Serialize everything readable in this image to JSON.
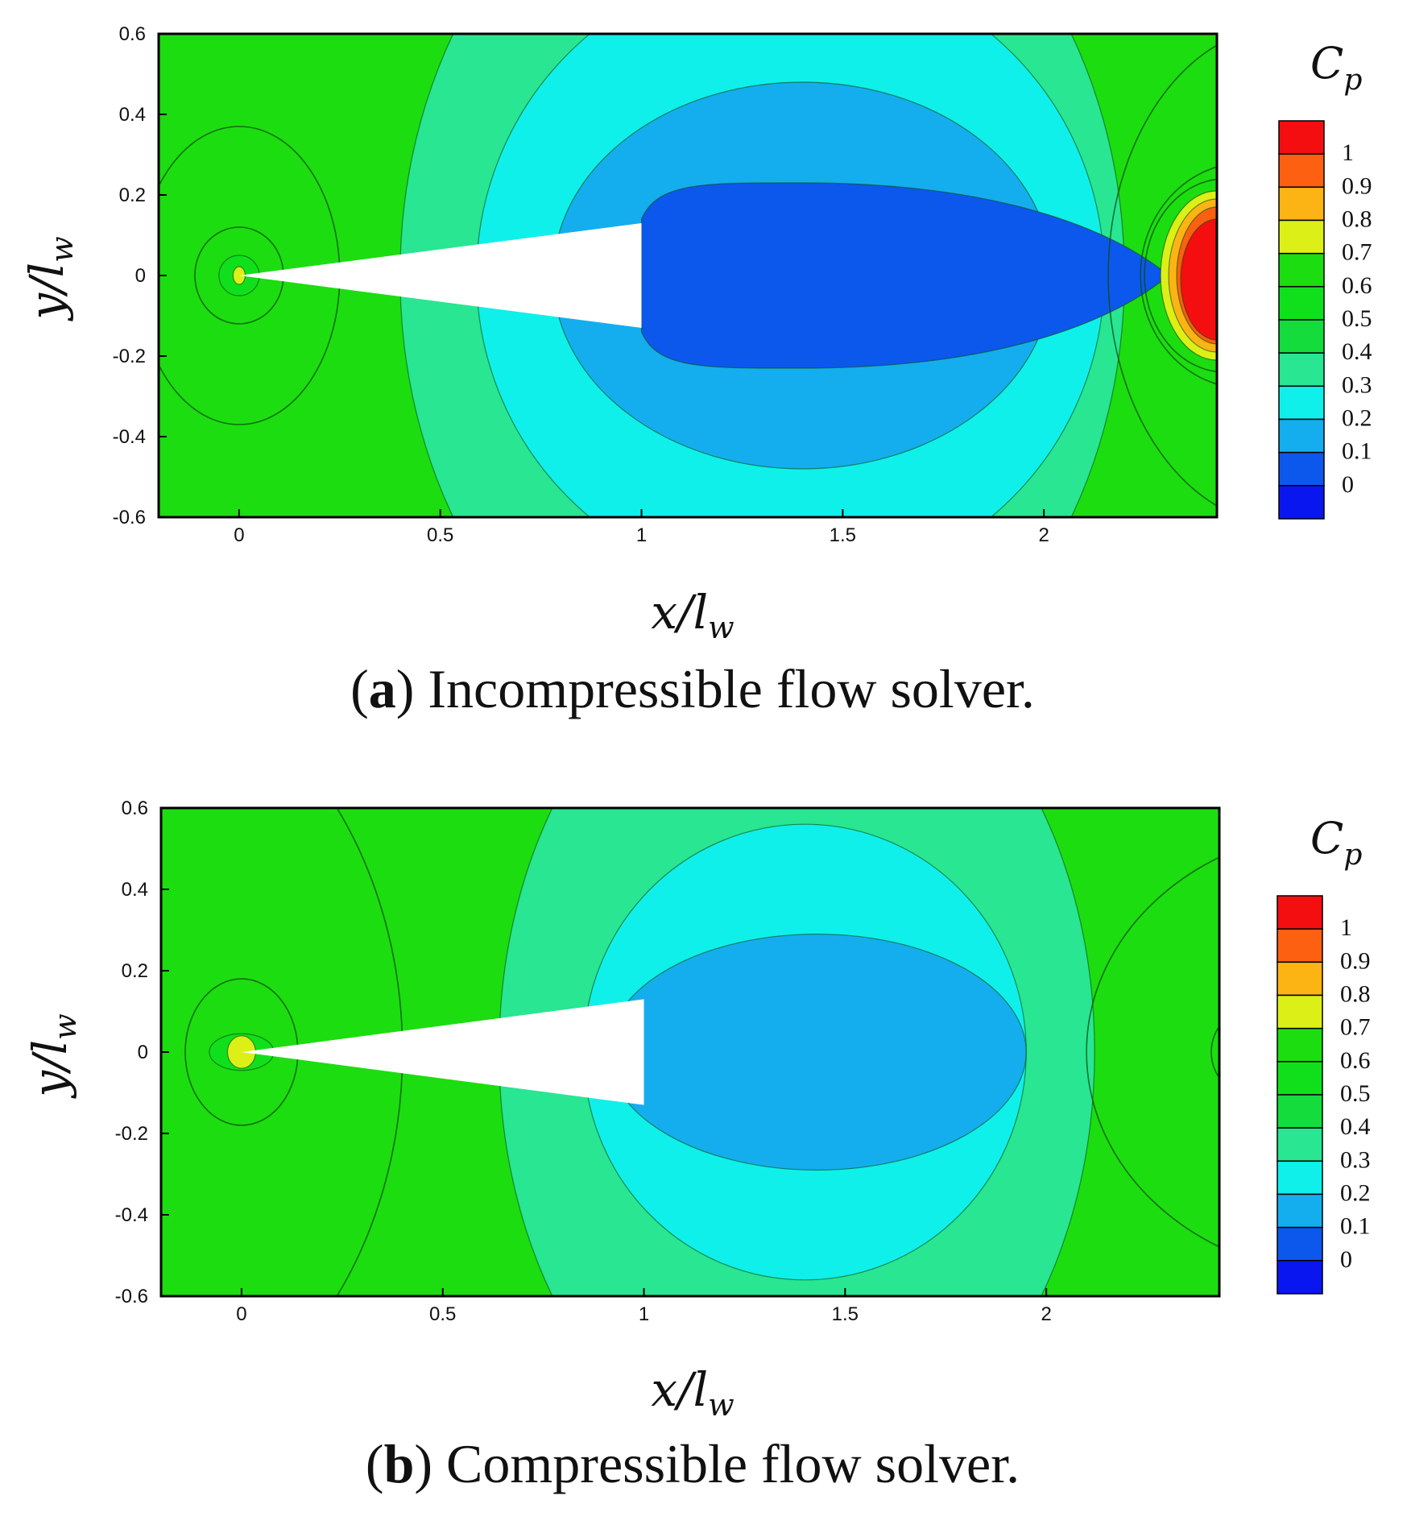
{
  "colors": {
    "cp_levels": [
      "#0a16f0",
      "#0c58ec",
      "#14aeee",
      "#10f0ea",
      "#28e692",
      "#14dc3c",
      "#10e01c",
      "#1cdd10",
      "#dcf018",
      "#fcb414",
      "#fc6010",
      "#f40e10"
    ],
    "plot_border": "#000000",
    "contour_line": "#0a4a0a"
  },
  "chart_data": [
    {
      "type": "heatmap",
      "panel_label": "a",
      "caption": "Incompressible flow solver.",
      "xlabel_var": "x",
      "ylabel_var": "y",
      "label_sub_base": "l",
      "label_sub": "w",
      "xlim": [
        -0.2,
        2.43
      ],
      "ylim": [
        -0.6,
        0.6
      ],
      "xticks": [
        0,
        0.5,
        1,
        1.5,
        2
      ],
      "xtick_labels": [
        "0",
        "0.5",
        "1",
        "1.5",
        "2"
      ],
      "yticks": [
        0.6,
        0.4,
        0.2,
        0,
        -0.2,
        -0.4,
        -0.6
      ],
      "ytick_labels": [
        "0.6",
        "0.4",
        "0.2",
        "0",
        "-0.2",
        "-0.4",
        "-0.6"
      ],
      "colorbar": {
        "title_base": "C",
        "title_sub": "p",
        "levels": [
          0,
          0.1,
          0.2,
          0.3,
          0.4,
          0.5,
          0.6,
          0.7,
          0.8,
          0.9,
          1
        ],
        "level_labels": [
          "0",
          "0.1",
          "0.2",
          "0.3",
          "0.4",
          "0.5",
          "0.6",
          "0.7",
          "0.8",
          "0.9",
          "1"
        ]
      },
      "body": {
        "apex": [
          0,
          0
        ],
        "base_x": 1,
        "base_y_top": 0.13,
        "base_y_bottom": -0.13
      },
      "regions": [
        {
          "band": 4,
          "shape": "ellipse",
          "cx": 1.3,
          "cy": 0,
          "rx": 0.9,
          "ry": 1.15
        },
        {
          "band": 3,
          "shape": "ellipse",
          "cx": 1.37,
          "cy": 0,
          "rx": 0.78,
          "ry": 0.78
        },
        {
          "band": 2,
          "shape": "ellipse",
          "cx": 1.4,
          "cy": 0,
          "rx": 0.62,
          "ry": 0.48
        },
        {
          "band": 1,
          "shape": "wake",
          "x_start": 1.0,
          "x_end": 2.31,
          "peak_x": 1.4,
          "half_height": 0.23
        },
        {
          "band": 8,
          "shape": "ellipse",
          "cx": 2.43,
          "cy": 0,
          "rx": 0.14,
          "ry": 0.21
        },
        {
          "band": 9,
          "shape": "ellipse",
          "cx": 2.43,
          "cy": 0,
          "rx": 0.12,
          "ry": 0.19
        },
        {
          "band": 10,
          "shape": "ellipse",
          "cx": 2.43,
          "cy": 0,
          "rx": 0.1,
          "ry": 0.17
        },
        {
          "band": 11,
          "shape": "ellipse",
          "cx": 2.43,
          "cy": -0.01,
          "rx": 0.09,
          "ry": 0.15
        },
        {
          "band": 6,
          "shape": "ellipse",
          "cx": 0,
          "cy": 0,
          "rx": 0.05,
          "ry": 0.05
        },
        {
          "band": 8,
          "shape": "ellipse",
          "cx": 0,
          "cy": 0,
          "rx": 0.015,
          "ry": 0.022
        }
      ],
      "contours": [
        {
          "cx": 0,
          "cy": 0,
          "rx": 0.25,
          "ry": 0.37
        },
        {
          "cx": 0,
          "cy": 0,
          "rx": 0.11,
          "ry": 0.12
        },
        {
          "cx": 2.6,
          "cy": 0,
          "rx": 0.44,
          "ry": 0.62
        },
        {
          "cx": 2.5,
          "cy": 0,
          "rx": 0.26,
          "ry": 0.28
        },
        {
          "cx": 2.45,
          "cy": 0,
          "rx": 0.2,
          "ry": 0.24
        }
      ]
    },
    {
      "type": "heatmap",
      "panel_label": "b",
      "caption": "Compressible flow solver.",
      "xlabel_var": "x",
      "ylabel_var": "y",
      "label_sub_base": "l",
      "label_sub": "w",
      "xlim": [
        -0.2,
        2.43
      ],
      "ylim": [
        -0.6,
        0.6
      ],
      "xticks": [
        0,
        0.5,
        1,
        1.5,
        2
      ],
      "xtick_labels": [
        "0",
        "0.5",
        "1",
        "1.5",
        "2"
      ],
      "yticks": [
        0.6,
        0.4,
        0.2,
        0,
        -0.2,
        -0.4,
        -0.6
      ],
      "ytick_labels": [
        "0.6",
        "0.4",
        "0.2",
        "0",
        "-0.2",
        "-0.4",
        "-0.6"
      ],
      "colorbar": {
        "title_base": "C",
        "title_sub": "p",
        "levels": [
          0,
          0.1,
          0.2,
          0.3,
          0.4,
          0.5,
          0.6,
          0.7,
          0.8,
          0.9,
          1
        ],
        "level_labels": [
          "0",
          "0.1",
          "0.2",
          "0.3",
          "0.4",
          "0.5",
          "0.6",
          "0.7",
          "0.8",
          "0.9",
          "1"
        ]
      },
      "body": {
        "apex": [
          0,
          0
        ],
        "base_x": 1,
        "base_y_top": 0.13,
        "base_y_bottom": -0.13
      },
      "regions": [
        {
          "band": 4,
          "shape": "ellipse",
          "cx": 1.38,
          "cy": 0,
          "rx": 0.74,
          "ry": 1.05
        },
        {
          "band": 3,
          "shape": "ellipse",
          "cx": 1.4,
          "cy": 0,
          "rx": 0.55,
          "ry": 0.56
        },
        {
          "band": 2,
          "shape": "ellipse",
          "cx": 1.43,
          "cy": 0,
          "rx": 0.52,
          "ry": 0.29
        },
        {
          "band": 6,
          "shape": "ellipse",
          "cx": 0,
          "cy": 0,
          "rx": 0.08,
          "ry": 0.045
        },
        {
          "band": 8,
          "shape": "ellipse",
          "cx": 0,
          "cy": 0,
          "rx": 0.035,
          "ry": 0.04
        }
      ],
      "contours": [
        {
          "cx": -0.38,
          "cy": 0,
          "rx": 0.78,
          "ry": 0.98
        },
        {
          "cx": 0,
          "cy": 0,
          "rx": 0.14,
          "ry": 0.18
        },
        {
          "cx": 2.75,
          "cy": 0,
          "rx": 0.65,
          "ry": 0.55
        },
        {
          "cx": 2.5,
          "cy": 0,
          "rx": 0.09,
          "ry": 0.1
        }
      ]
    }
  ]
}
